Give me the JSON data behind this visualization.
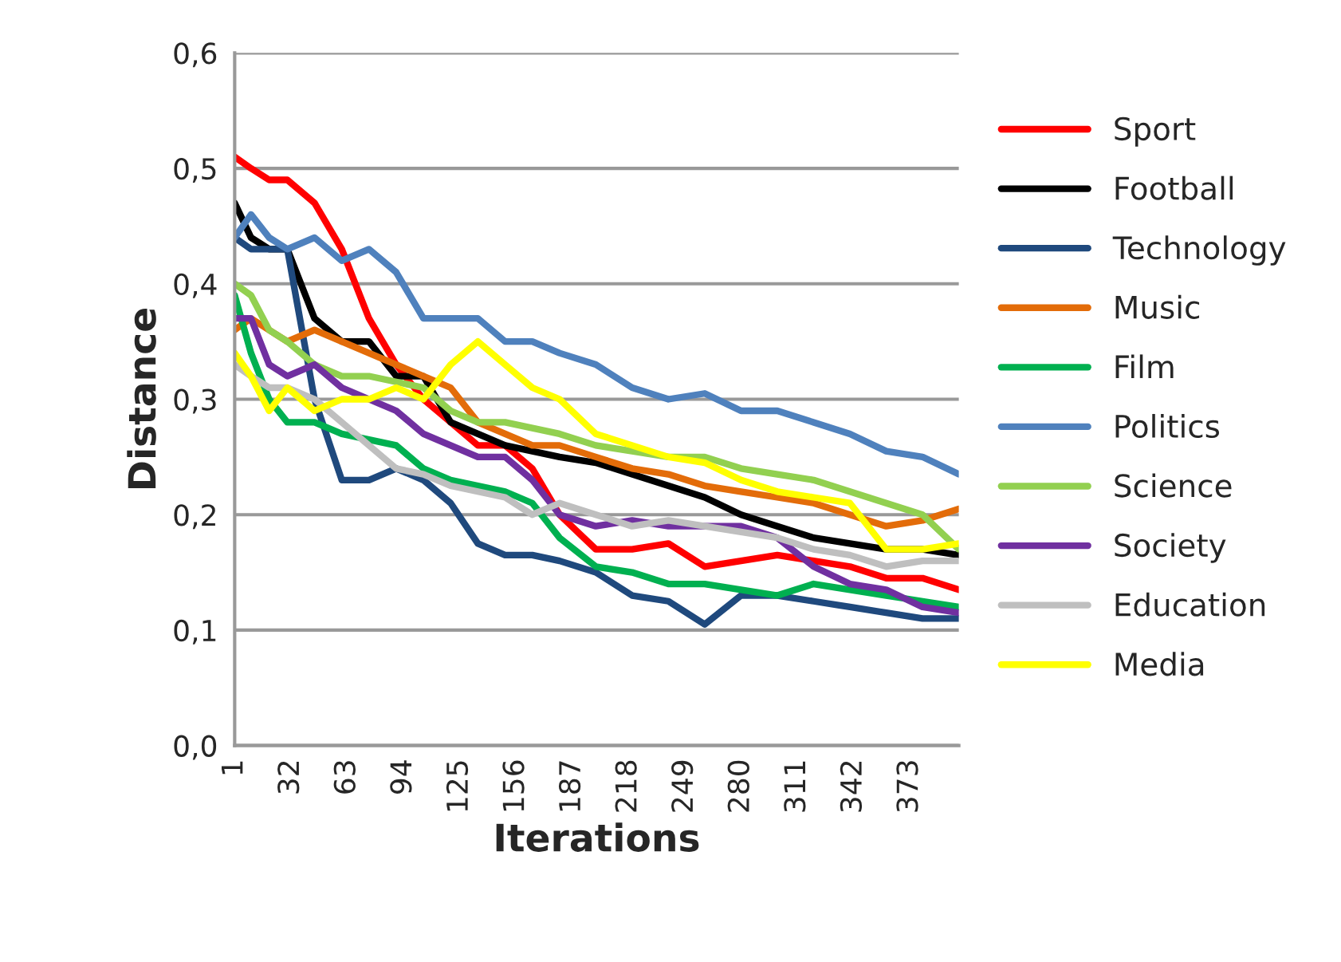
{
  "chart_data": {
    "type": "line",
    "xlabel": "Iterations",
    "ylabel": "Distance",
    "x": [
      1,
      10,
      20,
      30,
      45,
      60,
      75,
      90,
      105,
      120,
      135,
      150,
      165,
      180,
      200,
      220,
      240,
      260,
      280,
      300,
      320,
      340,
      360,
      380,
      400
    ],
    "xlim": [
      1,
      400
    ],
    "xticks": [
      1,
      32,
      63,
      94,
      125,
      156,
      187,
      218,
      249,
      280,
      311,
      342,
      373
    ],
    "ylim": [
      0,
      0.6
    ],
    "yticks": [
      {
        "value": 0,
        "label": "0,0"
      },
      {
        "value": 0.1,
        "label": "0,1"
      },
      {
        "value": 0.2,
        "label": "0,2"
      },
      {
        "value": 0.3,
        "label": "0,3"
      },
      {
        "value": 0.4,
        "label": "0,4"
      },
      {
        "value": 0.5,
        "label": "0,5"
      },
      {
        "value": 0.6,
        "label": "0,6"
      }
    ],
    "grid": "y",
    "legend": "right",
    "marker": "none",
    "line_style": "solid",
    "series": [
      {
        "name": "Sport",
        "color": "#ff0000",
        "values": [
          0.51,
          0.5,
          0.49,
          0.49,
          0.47,
          0.43,
          0.37,
          0.33,
          0.3,
          0.28,
          0.26,
          0.26,
          0.24,
          0.2,
          0.17,
          0.17,
          0.175,
          0.155,
          0.16,
          0.165,
          0.16,
          0.155,
          0.145,
          0.145,
          0.135
        ]
      },
      {
        "name": "Football",
        "color": "#000000",
        "values": [
          0.47,
          0.44,
          0.43,
          0.43,
          0.37,
          0.35,
          0.35,
          0.32,
          0.32,
          0.28,
          0.27,
          0.26,
          0.255,
          0.25,
          0.245,
          0.235,
          0.225,
          0.215,
          0.2,
          0.19,
          0.18,
          0.175,
          0.17,
          0.17,
          0.165
        ]
      },
      {
        "name": "Technology",
        "color": "#1f497d",
        "values": [
          0.44,
          0.43,
          0.43,
          0.43,
          0.3,
          0.23,
          0.23,
          0.24,
          0.23,
          0.21,
          0.175,
          0.165,
          0.165,
          0.16,
          0.15,
          0.13,
          0.125,
          0.105,
          0.13,
          0.13,
          0.125,
          0.12,
          0.115,
          0.11,
          0.11
        ]
      },
      {
        "name": "Music",
        "color": "#e36c09",
        "values": [
          0.36,
          0.37,
          0.36,
          0.35,
          0.36,
          0.35,
          0.34,
          0.33,
          0.32,
          0.31,
          0.28,
          0.27,
          0.26,
          0.26,
          0.25,
          0.24,
          0.235,
          0.225,
          0.22,
          0.215,
          0.21,
          0.2,
          0.19,
          0.195,
          0.205
        ]
      },
      {
        "name": "Film",
        "color": "#00b050",
        "values": [
          0.39,
          0.34,
          0.3,
          0.28,
          0.28,
          0.27,
          0.265,
          0.26,
          0.24,
          0.23,
          0.225,
          0.22,
          0.21,
          0.18,
          0.155,
          0.15,
          0.14,
          0.14,
          0.135,
          0.13,
          0.14,
          0.135,
          0.13,
          0.125,
          0.12
        ]
      },
      {
        "name": "Politics",
        "color": "#4f81bd",
        "values": [
          0.44,
          0.46,
          0.44,
          0.43,
          0.44,
          0.42,
          0.43,
          0.41,
          0.37,
          0.37,
          0.37,
          0.35,
          0.35,
          0.34,
          0.33,
          0.31,
          0.3,
          0.305,
          0.29,
          0.29,
          0.28,
          0.27,
          0.255,
          0.25,
          0.235
        ]
      },
      {
        "name": "Science",
        "color": "#92d050",
        "values": [
          0.4,
          0.39,
          0.36,
          0.35,
          0.33,
          0.32,
          0.32,
          0.315,
          0.31,
          0.29,
          0.28,
          0.28,
          0.275,
          0.27,
          0.26,
          0.255,
          0.25,
          0.25,
          0.24,
          0.235,
          0.23,
          0.22,
          0.21,
          0.2,
          0.17
        ]
      },
      {
        "name": "Society",
        "color": "#7030a0",
        "values": [
          0.37,
          0.37,
          0.33,
          0.32,
          0.33,
          0.31,
          0.3,
          0.29,
          0.27,
          0.26,
          0.25,
          0.25,
          0.23,
          0.2,
          0.19,
          0.195,
          0.19,
          0.19,
          0.19,
          0.18,
          0.155,
          0.14,
          0.135,
          0.12,
          0.115
        ]
      },
      {
        "name": "Education",
        "color": "#bfbfbf",
        "values": [
          0.33,
          0.32,
          0.31,
          0.31,
          0.3,
          0.28,
          0.26,
          0.24,
          0.235,
          0.225,
          0.22,
          0.215,
          0.2,
          0.21,
          0.2,
          0.19,
          0.195,
          0.19,
          0.185,
          0.18,
          0.17,
          0.165,
          0.155,
          0.16,
          0.16
        ]
      },
      {
        "name": "Media",
        "color": "#ffff00",
        "values": [
          0.34,
          0.32,
          0.29,
          0.31,
          0.29,
          0.3,
          0.3,
          0.31,
          0.3,
          0.33,
          0.35,
          0.33,
          0.31,
          0.3,
          0.27,
          0.26,
          0.25,
          0.245,
          0.23,
          0.22,
          0.215,
          0.21,
          0.17,
          0.17,
          0.175
        ]
      }
    ]
  }
}
